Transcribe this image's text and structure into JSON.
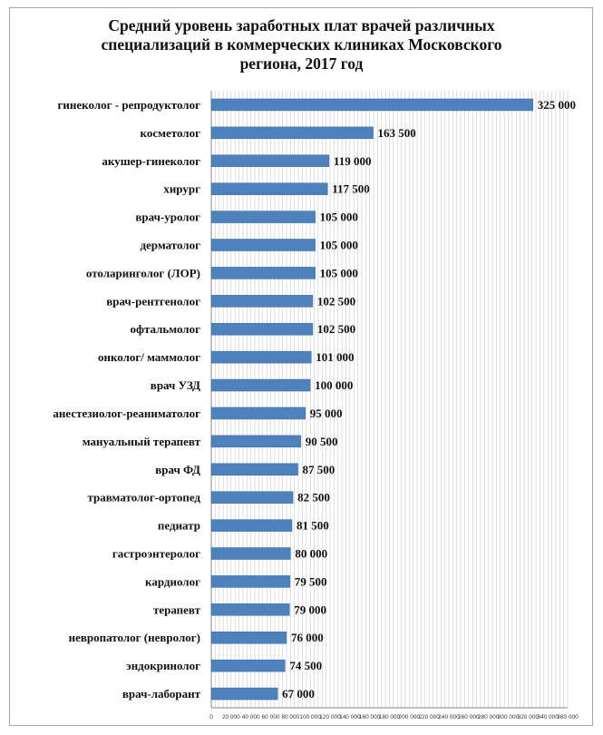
{
  "chart_data": {
    "type": "bar",
    "orientation": "horizontal",
    "title": "Средний уровень заработных плат врачей различных специализаций в коммерческих клиниках Московского региона, 2017 год",
    "title_lines": [
      "Средний уровень заработных плат врачей различных",
      "специализаций в коммерческих клиниках Московского",
      "региона, 2017 год"
    ],
    "categories": [
      "гинеколог - репродуктолог",
      "косметолог",
      "акушер-гинеколог",
      "хирург",
      "врач-уролог",
      "дерматолог",
      "отоларинголог (ЛОР)",
      "врач-рентгенолог",
      "офтальмолог",
      "онколог/ маммолог",
      "врач УЗД",
      "анестезиолог-реаниматолог",
      "мануальный терапевт",
      "врач ФД",
      "травматолог-ортопед",
      "педиатр",
      "гастроэнтеролог",
      "кардиолог",
      "терапевт",
      "невропатолог (невролог)",
      "эндокринолог",
      "врач-лаборант"
    ],
    "values": [
      325000,
      163500,
      119000,
      117500,
      105000,
      105000,
      105000,
      102500,
      102500,
      101000,
      100000,
      95000,
      90500,
      87500,
      82500,
      81500,
      80000,
      79500,
      79000,
      76000,
      74500,
      67000
    ],
    "value_labels": [
      "325 000",
      "163 500",
      "119 000",
      "117 500",
      "105 000",
      "105 000",
      "105 000",
      "102 500",
      "102 500",
      "101 000",
      "100 000",
      "95 000",
      "90 500",
      "87 500",
      "82 500",
      "81 500",
      "80 000",
      "79 500",
      "79 000",
      "76 000",
      "74 500",
      "67 000"
    ],
    "xlim": [
      0,
      360000
    ],
    "x_ticks": [
      0,
      20000,
      40000,
      60000,
      80000,
      100000,
      120000,
      140000,
      160000,
      180000,
      200000,
      220000,
      240000,
      260000,
      280000,
      300000,
      320000,
      340000,
      360000
    ],
    "x_tick_labels": [
      "0",
      "20 000",
      "40 000",
      "60 000",
      "80 000",
      "100 000",
      "120 000",
      "140 000",
      "160 000",
      "180 000",
      "200 000",
      "220 000",
      "240 000",
      "260 000",
      "280 000",
      "300 000",
      "320 000",
      "340 000",
      "360 000"
    ],
    "minor_gridlines": true,
    "grid": true,
    "legend": "none",
    "bar_color": "#4f81bd",
    "grid_color": "#c8c8c8"
  }
}
